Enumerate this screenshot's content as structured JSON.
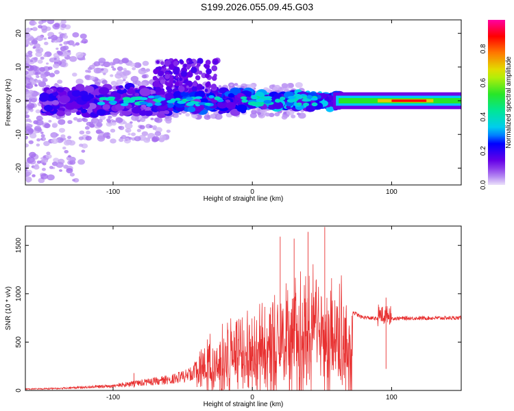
{
  "title": "S199.2026.055.09.45.G03",
  "colors": {
    "snr_line": "#e83030",
    "axis": "#000000"
  },
  "chart_data": [
    {
      "type": "heatmap",
      "xlabel": "Height of straight line (km)",
      "ylabel": "Frequency (Hz)",
      "xlim": [
        -163,
        150
      ],
      "ylim": [
        -25,
        24
      ],
      "xticks": [
        -100,
        0,
        100
      ],
      "yticks": [
        -20,
        -10,
        0,
        10,
        20
      ],
      "colorbar": {
        "label": "Normalized spectral amplitude",
        "range": [
          0,
          0.97
        ],
        "ticks": [
          0.0,
          0.2,
          0.4,
          0.6,
          0.8
        ]
      },
      "grid": false
    },
    {
      "type": "line",
      "series": [
        {
          "values_description_only": ""
        }
      ],
      "xlabel": "Height of straight line (km)",
      "ylabel": "SNR (10 * v/v)",
      "xlim": [
        -163,
        150
      ],
      "ylim": [
        0,
        1700
      ],
      "xticks": [
        -100,
        0,
        100
      ],
      "yticks": [
        0,
        500,
        1000,
        1500
      ],
      "envelope": [
        [
          -163,
          20
        ],
        [
          -140,
          30
        ],
        [
          -120,
          45
        ],
        [
          -100,
          70
        ],
        [
          -80,
          110
        ],
        [
          -60,
          160
        ],
        [
          -45,
          230
        ],
        [
          -35,
          420
        ],
        [
          -20,
          560
        ],
        [
          -5,
          640
        ],
        [
          10,
          760
        ],
        [
          25,
          900
        ],
        [
          40,
          980
        ],
        [
          55,
          1000
        ],
        [
          68,
          850
        ],
        [
          78,
          760
        ],
        [
          90,
          740
        ],
        [
          100,
          745
        ],
        [
          120,
          748
        ],
        [
          150,
          750
        ]
      ],
      "peaks": [
        [
          -85,
          180
        ],
        [
          20,
          1590
        ],
        [
          30,
          1570
        ],
        [
          40,
          1640
        ],
        [
          52,
          1690
        ],
        [
          96,
          960
        ]
      ],
      "grid": false
    }
  ]
}
